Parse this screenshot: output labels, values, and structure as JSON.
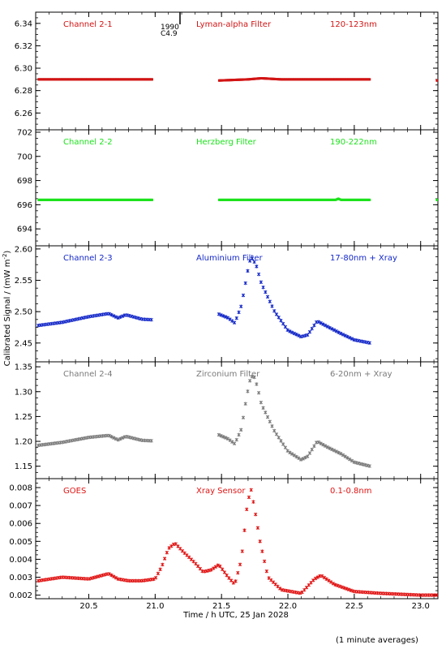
{
  "chart_data": [
    {
      "type": "scatter",
      "labels": {
        "channel": "Channel 2-1",
        "filter": "Lyman-alpha Filter",
        "band": "120-123nm"
      },
      "color": "#d21414",
      "ylim": [
        6.245,
        6.35
      ],
      "yticks": [
        "6.26",
        "6.28",
        "6.30",
        "6.32",
        "6.34"
      ],
      "segments": [
        {
          "x": [
            20.12,
            20.98
          ],
          "y": [
            6.29,
            6.29
          ]
        },
        {
          "x": [
            21.48,
            21.7,
            21.8,
            21.95,
            22.62
          ],
          "y": [
            6.289,
            6.29,
            6.291,
            6.29,
            6.29
          ]
        },
        {
          "x": [
            23.12,
            23.13
          ],
          "y": [
            6.289,
            6.289
          ]
        }
      ],
      "annotations": [
        {
          "text": "1990",
          "x": 21.12,
          "y": 6.337
        },
        {
          "text": "C4.9",
          "x": 21.12,
          "y": 6.333
        }
      ]
    },
    {
      "type": "scatter",
      "labels": {
        "channel": "Channel 2-2",
        "filter": "Herzberg Filter",
        "band": "190-222nm"
      },
      "color": "#1ce21c",
      "ylim": [
        692.6,
        702.2
      ],
      "yticks": [
        "694",
        "696",
        "698",
        "700",
        "702"
      ],
      "segments": [
        {
          "x": [
            20.12,
            20.98
          ],
          "y": [
            696.4,
            696.4
          ]
        },
        {
          "x": [
            21.48,
            22.36,
            22.38,
            22.4,
            22.62
          ],
          "y": [
            696.4,
            696.4,
            696.5,
            696.4,
            696.4
          ]
        },
        {
          "x": [
            23.12,
            23.13
          ],
          "y": [
            696.4,
            696.4
          ]
        }
      ]
    },
    {
      "type": "scatter",
      "labels": {
        "channel": "Channel 2-3",
        "filter": "Aluminium Filter",
        "band": "17-80nm + Xray"
      },
      "color": "#1428c8",
      "ylabel": "Calibrated Signal / (mW m",
      "ylabel_sup": "-2",
      "ylabel_end": ")",
      "ylim": [
        2.42,
        2.605
      ],
      "yticks": [
        "2.45",
        "2.50",
        "2.55",
        "2.60"
      ],
      "segments": [
        {
          "x": [
            20.12,
            20.3,
            20.5,
            20.65,
            20.72,
            20.78,
            20.9,
            20.98
          ],
          "y": [
            2.478,
            2.483,
            2.492,
            2.497,
            2.49,
            2.495,
            2.488,
            2.487
          ]
        },
        {
          "x": [
            21.48,
            21.55,
            21.6,
            21.65,
            21.68,
            21.71,
            21.73,
            21.76,
            21.8,
            21.9,
            22.0,
            22.1,
            22.15,
            22.22,
            22.3,
            22.4,
            22.5,
            22.62
          ],
          "y": [
            2.496,
            2.49,
            2.482,
            2.51,
            2.545,
            2.58,
            2.585,
            2.575,
            2.545,
            2.5,
            2.47,
            2.46,
            2.463,
            2.485,
            2.476,
            2.465,
            2.455,
            2.45
          ]
        }
      ]
    },
    {
      "type": "scatter",
      "labels": {
        "channel": "Channel 2-4",
        "filter": "Zirconium Filter",
        "band": "6-20nm + Xray"
      },
      "color": "#7a7a7a",
      "ylim": [
        1.125,
        1.36
      ],
      "yticks": [
        "1.15",
        "1.20",
        "1.25",
        "1.30",
        "1.35"
      ],
      "segments": [
        {
          "x": [
            20.12,
            20.3,
            20.5,
            20.65,
            20.72,
            20.78,
            20.9,
            20.98
          ],
          "y": [
            1.192,
            1.198,
            1.208,
            1.212,
            1.203,
            1.21,
            1.202,
            1.201
          ]
        },
        {
          "x": [
            21.48,
            21.55,
            21.6,
            21.65,
            21.68,
            21.71,
            21.74,
            21.77,
            21.8,
            21.9,
            22.0,
            22.1,
            22.15,
            22.22,
            22.3,
            22.4,
            22.5,
            22.62
          ],
          "y": [
            1.213,
            1.205,
            1.195,
            1.225,
            1.275,
            1.32,
            1.335,
            1.31,
            1.275,
            1.22,
            1.18,
            1.163,
            1.17,
            1.2,
            1.188,
            1.175,
            1.158,
            1.15
          ]
        }
      ]
    },
    {
      "type": "scatter",
      "labels": {
        "channel": "GOES",
        "filter": "Xray Sensor",
        "band": "0.1-0.8nm"
      },
      "color": "#e01414",
      "ylim": [
        0.0018,
        0.0085
      ],
      "yticks": [
        "0.002",
        "0.003",
        "0.004",
        "0.005",
        "0.006",
        "0.007",
        "0.008"
      ],
      "segments": [
        {
          "x": [
            20.12,
            20.3,
            20.5,
            20.6,
            20.65,
            20.72,
            20.8,
            20.9,
            21.0,
            21.05,
            21.1,
            21.15,
            21.2,
            21.3,
            21.36,
            21.42,
            21.48,
            21.55,
            21.6,
            21.65,
            21.69,
            21.72,
            21.75,
            21.79,
            21.85,
            21.95,
            22.1,
            22.2,
            22.25,
            22.35,
            22.5,
            22.7,
            23.0,
            23.13
          ],
          "y": [
            0.0028,
            0.003,
            0.0029,
            0.0031,
            0.0032,
            0.0029,
            0.0028,
            0.0028,
            0.0029,
            0.0036,
            0.0046,
            0.0049,
            0.0045,
            0.0038,
            0.0033,
            0.0034,
            0.0037,
            0.003,
            0.0026,
            0.004,
            0.0068,
            0.008,
            0.0068,
            0.005,
            0.003,
            0.0023,
            0.0021,
            0.0029,
            0.0031,
            0.0026,
            0.0022,
            0.0021,
            0.002,
            0.002
          ]
        }
      ]
    }
  ],
  "x_axis": {
    "xlim": [
      20.1,
      23.13
    ],
    "ticks": [
      "20.5",
      "21.0",
      "21.5",
      "22.0",
      "22.5",
      "23.0"
    ],
    "label": "Time / h UTC, 25 Jan 2028"
  },
  "footnote": "(1 minute averages)"
}
